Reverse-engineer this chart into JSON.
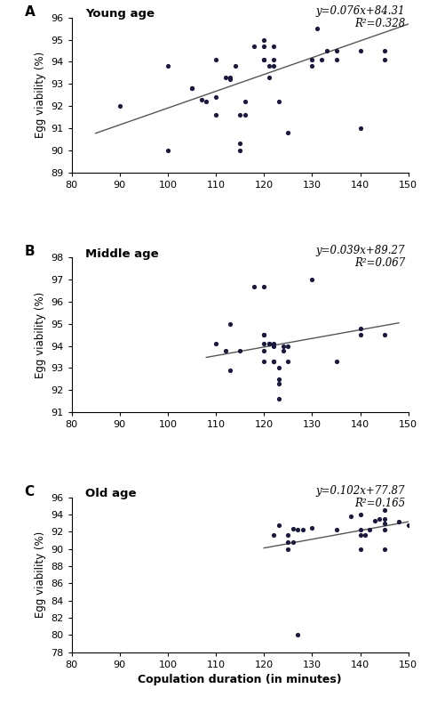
{
  "panel_A": {
    "label": "A",
    "title": "Young age",
    "equation": "y=0.076x+84.31",
    "r2": "R²=0.328",
    "slope": 0.076,
    "intercept": 84.31,
    "xlim": [
      80,
      150
    ],
    "ylim": [
      89,
      96
    ],
    "yticks": [
      89,
      90,
      91,
      92,
      93,
      94,
      95,
      96
    ],
    "xticks": [
      80,
      90,
      100,
      110,
      120,
      130,
      140,
      150
    ],
    "line_xrange": [
      85,
      150
    ],
    "scatter_x": [
      90,
      100,
      100,
      105,
      105,
      107,
      108,
      110,
      110,
      110,
      112,
      113,
      113,
      114,
      115,
      115,
      115,
      116,
      116,
      118,
      120,
      120,
      120,
      120,
      121,
      121,
      122,
      122,
      122,
      123,
      125,
      130,
      130,
      131,
      132,
      133,
      135,
      135,
      140,
      140,
      145,
      145
    ],
    "scatter_y": [
      92.0,
      90.0,
      93.8,
      92.8,
      92.8,
      92.3,
      92.2,
      91.6,
      92.4,
      94.1,
      93.3,
      93.3,
      93.2,
      93.8,
      90.3,
      90.0,
      91.6,
      91.6,
      92.2,
      94.7,
      95.0,
      94.7,
      94.1,
      94.1,
      93.3,
      93.8,
      94.7,
      94.1,
      93.8,
      92.2,
      90.8,
      94.1,
      93.8,
      95.5,
      94.1,
      94.5,
      94.5,
      94.1,
      94.5,
      91.0,
      94.1,
      94.5
    ]
  },
  "panel_B": {
    "label": "B",
    "title": "Middle age",
    "equation": "y=0.039x+89.27",
    "r2": "R²=0.067",
    "slope": 0.039,
    "intercept": 89.27,
    "xlim": [
      80,
      150
    ],
    "ylim": [
      91,
      98
    ],
    "yticks": [
      91,
      92,
      93,
      94,
      95,
      96,
      97,
      98
    ],
    "xticks": [
      80,
      90,
      100,
      110,
      120,
      130,
      140,
      150
    ],
    "line_xrange": [
      108,
      148
    ],
    "scatter_x": [
      110,
      112,
      113,
      113,
      115,
      118,
      120,
      120,
      120,
      120,
      120,
      120,
      121,
      121,
      122,
      122,
      122,
      122,
      123,
      123,
      123,
      123,
      124,
      124,
      125,
      125,
      130,
      135,
      140,
      140,
      145
    ],
    "scatter_y": [
      94.1,
      93.8,
      95.0,
      92.9,
      93.8,
      96.7,
      96.7,
      94.5,
      94.5,
      94.1,
      93.3,
      93.8,
      94.1,
      94.1,
      94.1,
      94.0,
      93.3,
      93.3,
      93.0,
      92.3,
      92.5,
      91.6,
      93.8,
      94.0,
      94.0,
      93.3,
      97.0,
      93.3,
      94.8,
      94.5,
      94.5
    ]
  },
  "panel_C": {
    "label": "C",
    "title": "Old age",
    "equation": "y=0.102x+77.87",
    "r2": "R²=0.165",
    "slope": 0.102,
    "intercept": 77.87,
    "xlim": [
      80,
      150
    ],
    "ylim": [
      78,
      96
    ],
    "yticks": [
      78,
      80,
      82,
      84,
      86,
      88,
      90,
      92,
      94,
      96
    ],
    "xticks": [
      80,
      90,
      100,
      110,
      120,
      130,
      140,
      150
    ],
    "line_xrange": [
      120,
      150
    ],
    "scatter_x": [
      122,
      123,
      125,
      125,
      125,
      126,
      126,
      127,
      127,
      128,
      130,
      135,
      138,
      140,
      140,
      140,
      140,
      141,
      142,
      143,
      144,
      145,
      145,
      145,
      145,
      145,
      148,
      150
    ],
    "scatter_y": [
      91.6,
      92.8,
      90.0,
      91.6,
      90.8,
      90.8,
      92.4,
      92.2,
      80.0,
      92.2,
      92.5,
      92.2,
      93.8,
      92.2,
      90.0,
      91.6,
      94.0,
      91.6,
      92.2,
      93.3,
      93.5,
      93.5,
      90.0,
      93.0,
      92.2,
      94.5,
      93.2,
      92.8
    ]
  },
  "xlabel": "Copulation duration (in minutes)",
  "ylabel": "Egg viability (%)",
  "dot_color": "#1a1a3c",
  "line_color": "#555555",
  "bg_color": "#ffffff"
}
